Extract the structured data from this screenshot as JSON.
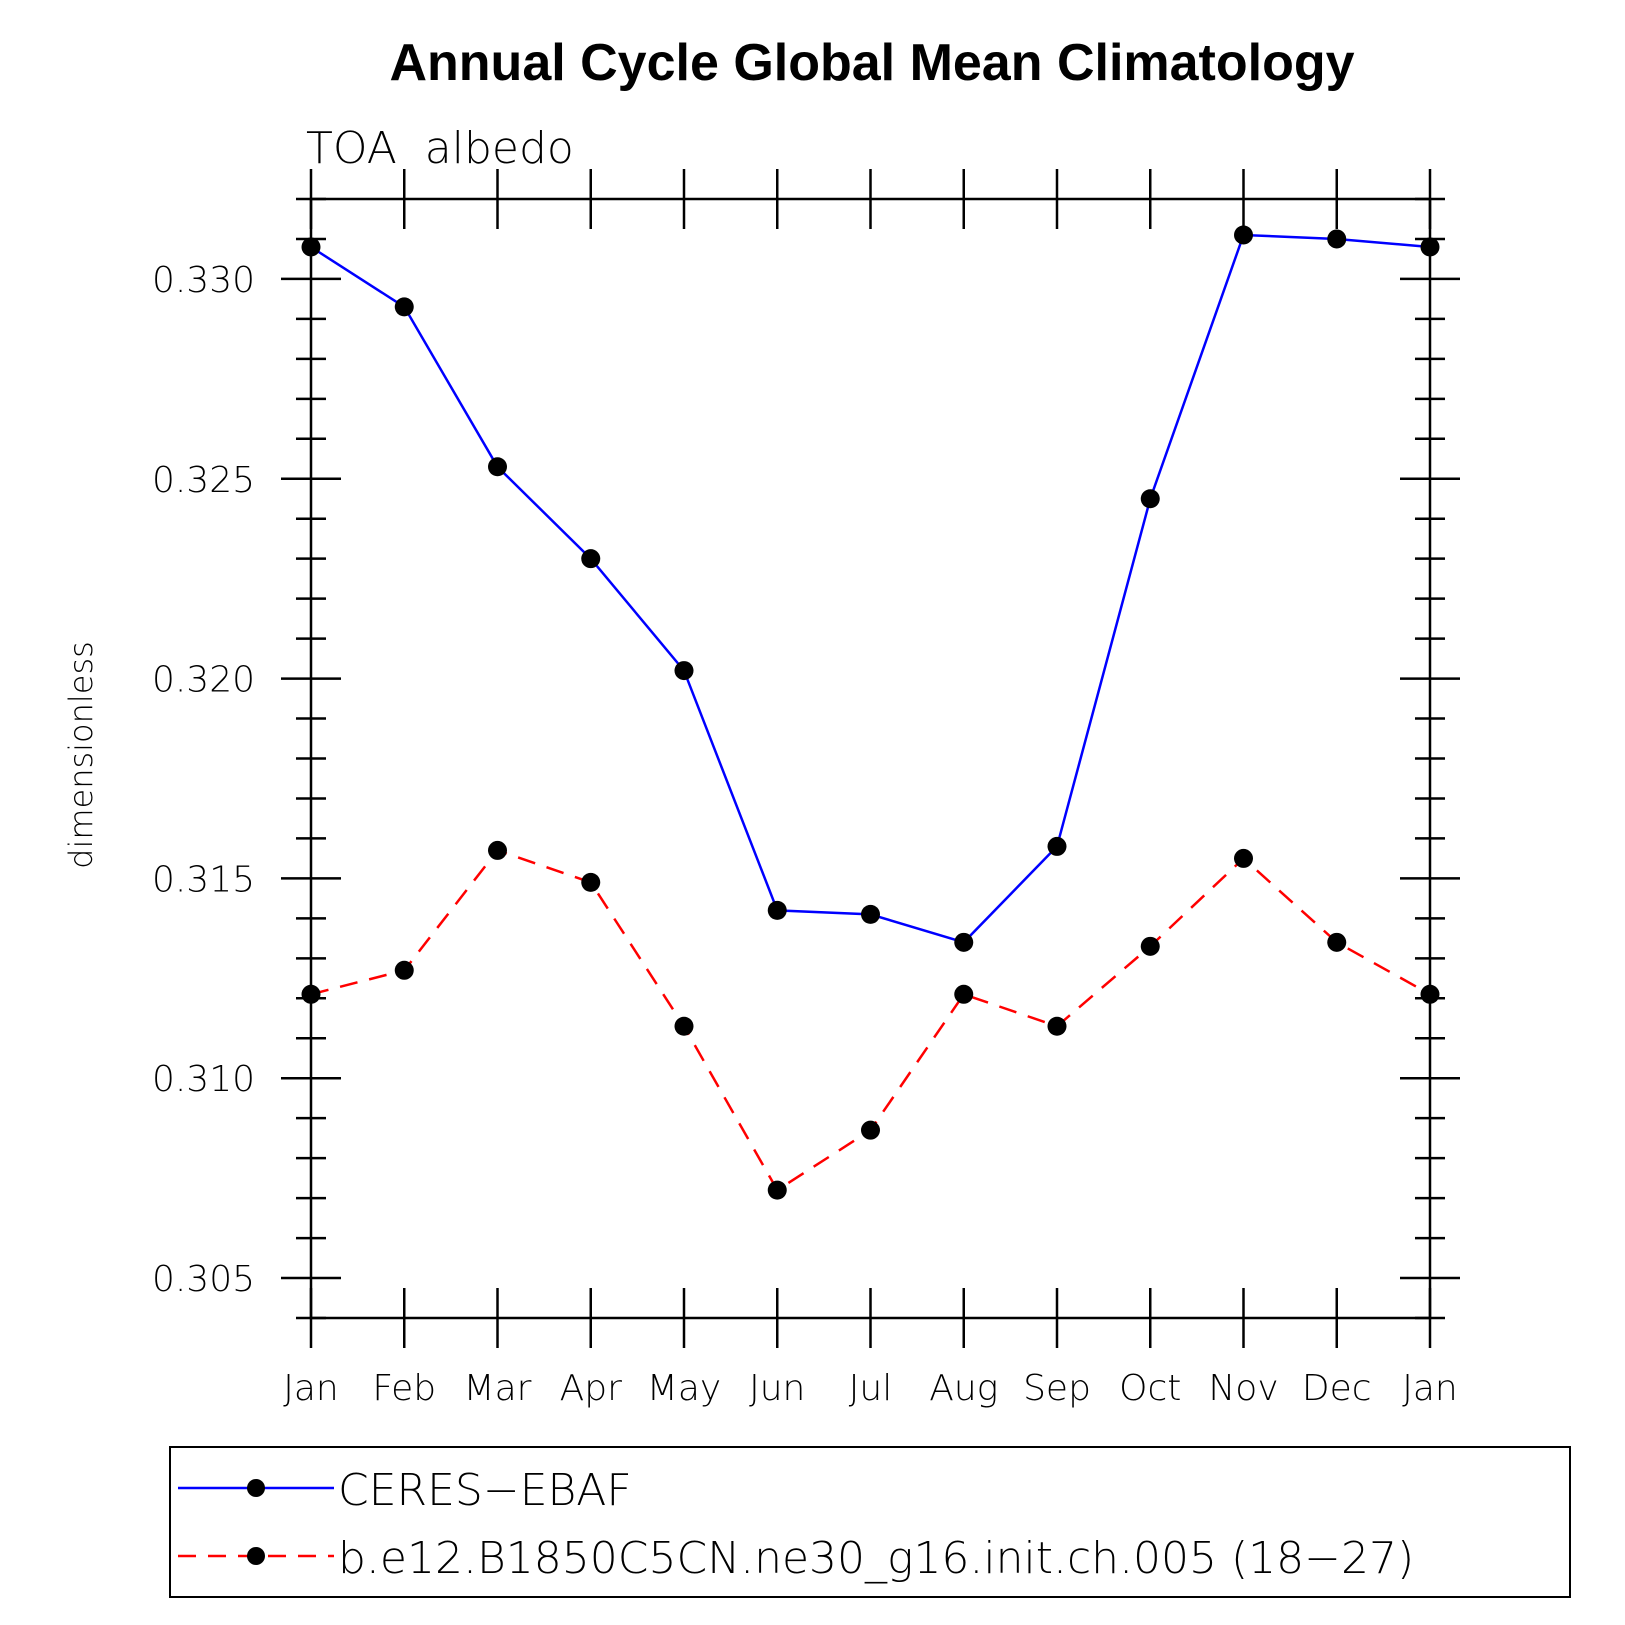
{
  "chart_data": {
    "type": "line",
    "title": "Annual Cycle Global Mean Climatology",
    "subtitle": "TOA  albedo",
    "xlabel": "",
    "ylabel": "dimensionless",
    "categories": [
      "Jan",
      "Feb",
      "Mar",
      "Apr",
      "May",
      "Jun",
      "Jul",
      "Aug",
      "Sep",
      "Oct",
      "Nov",
      "Dec",
      "Jan"
    ],
    "ylim": [
      0.304,
      0.332
    ],
    "yticks": [
      "0.305",
      "0.310",
      "0.315",
      "0.320",
      "0.325",
      "0.330"
    ],
    "legend_position": "bottom",
    "series": [
      {
        "name": "CERES−EBAF",
        "color": "#0000ff",
        "style": "solid",
        "values": [
          0.3308,
          0.3293,
          0.3253,
          0.323,
          0.3202,
          0.3142,
          0.3141,
          0.3134,
          0.3158,
          0.3245,
          0.3311,
          0.331,
          0.3308
        ]
      },
      {
        "name": "b.e12.B1850C5CN.ne30_g16.init.ch.005 (18−27)",
        "color": "#ff0000",
        "style": "dashed",
        "values": [
          0.3121,
          0.3127,
          0.3157,
          0.3149,
          0.3113,
          0.3072,
          0.3087,
          0.3121,
          0.3113,
          0.3133,
          0.3155,
          0.3134,
          0.3121
        ]
      }
    ]
  }
}
